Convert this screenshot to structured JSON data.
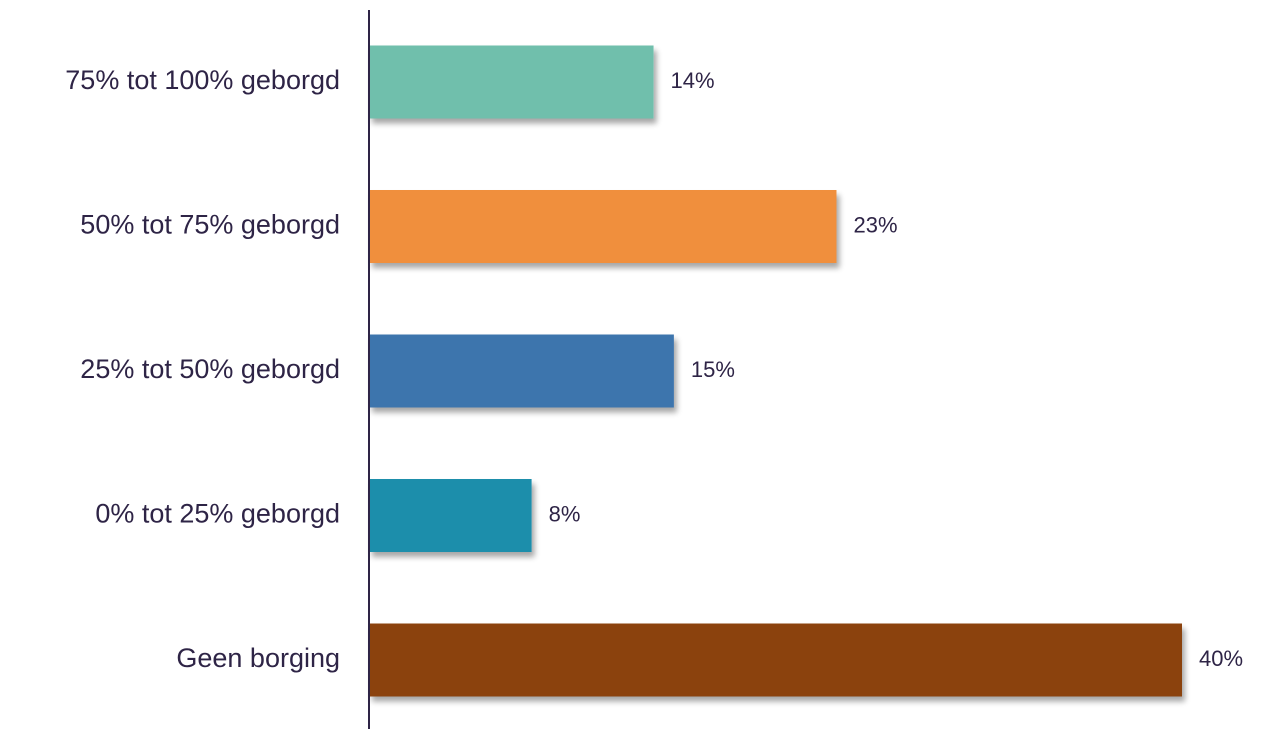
{
  "chart_data": {
    "type": "bar",
    "orientation": "horizontal",
    "categories": [
      "75% tot 100% geborgd",
      "50% tot 75% geborgd",
      "25% tot 50% geborgd",
      "0% tot 25% geborgd",
      "Geen borging"
    ],
    "values": [
      14,
      23,
      15,
      8,
      40
    ],
    "value_labels": [
      "14%",
      "23%",
      "15%",
      "8%",
      "40%"
    ],
    "unit": "%",
    "colors": [
      "#6fbfac",
      "#f08f3c",
      "#3c74ad",
      "#1f8eab",
      "#8b4309"
    ],
    "xlim": [
      0,
      40
    ],
    "axis_color": "#2e2446",
    "grid": false,
    "legend": "none"
  }
}
